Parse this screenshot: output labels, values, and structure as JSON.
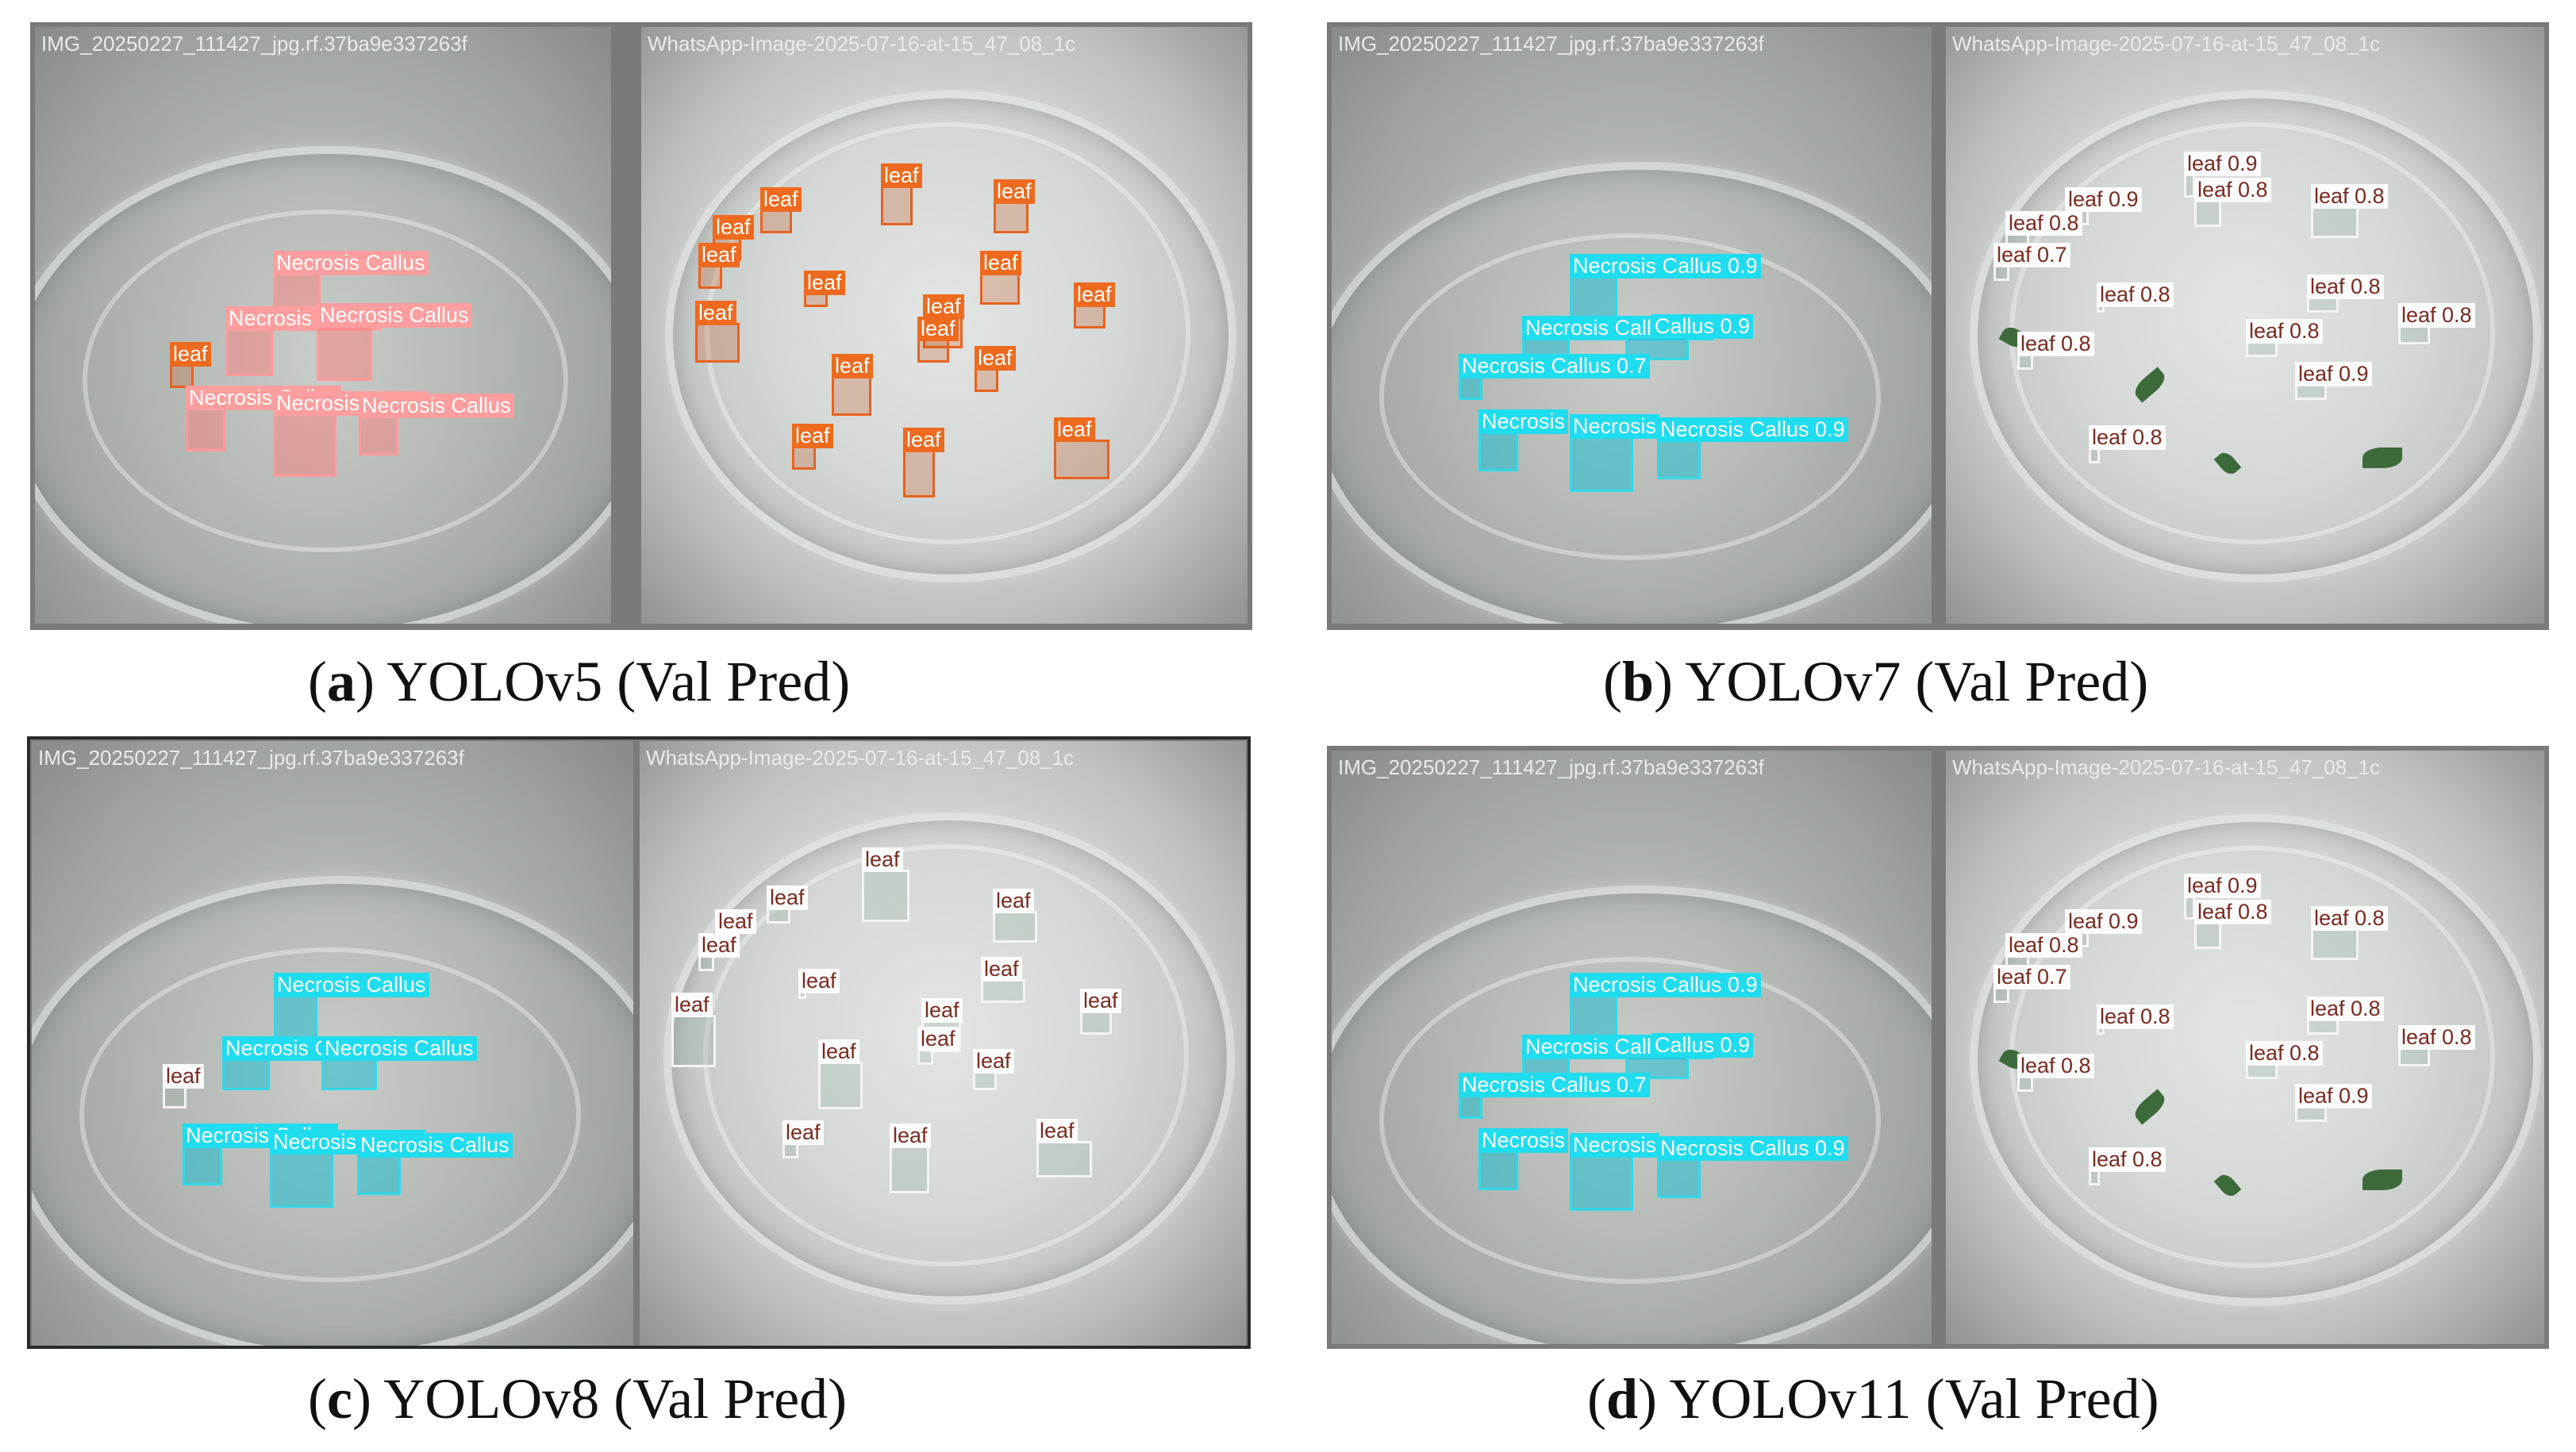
{
  "panels": [
    {
      "id": "a",
      "letter": "a",
      "title": "YOLOv5 (Val Pred)",
      "left_image_name": "IMG_20250227_111427_jpg.rf.37ba9e337263f",
      "right_image_name": "WhatsApp-Image-2025-07-16-at-15_47_08_1c",
      "callus_label": "Necrosis Callus",
      "leaf_label": "leaf"
    },
    {
      "id": "b",
      "letter": "b",
      "title": "YOLOv7 (Val Pred)",
      "left_image_name": "IMG_20250227_111427_jpg.rf.37ba9e337263f",
      "right_image_name": "WhatsApp-Image-2025-07-16-at-15_47_08_1c",
      "callus_labels": [
        "Necrosis Callus 0.9",
        "Necrosis Callus 0.9",
        "Callus 0.9",
        "Necrosis Callus 0.7",
        "Necrosis",
        "Necrosis",
        "Necrosis Callus 0.9"
      ],
      "leaf_labels": [
        "leaf 0.9",
        "leaf 0.9",
        "leaf 0.8",
        "leaf 0.8",
        "leaf 0.8",
        "leaf 0.7",
        "leaf 0.8",
        "leaf 0.8",
        "leaf 0.8",
        "leaf 0.8",
        "leaf 0.8",
        "leaf 0.9",
        "leaf 0.8"
      ]
    },
    {
      "id": "c",
      "letter": "c",
      "title": "YOLOv8 (Val Pred)",
      "left_image_name": "IMG_20250227_111427_jpg.rf.37ba9e337263f",
      "right_image_name": "WhatsApp-Image-2025-07-16-at-15_47_08_1c",
      "callus_label": "Necrosis Callus",
      "leaf_label": "leaf"
    },
    {
      "id": "d",
      "letter": "d",
      "title": "YOLOv11 (Val Pred)",
      "left_image_name": "IMG_20250227_111427_jpg.rf.37ba9e337263f",
      "right_image_name": "WhatsApp-Image-2025-07-16-at-15_47_08_1c",
      "callus_labels": [
        "Necrosis Callus 0.9",
        "Necrosis Callus 0.9",
        "Callus 0.9",
        "Necrosis Callus 0.7",
        "Necrosis",
        "Necrosis",
        "Necrosis Callus 0.9"
      ],
      "leaf_labels": [
        "leaf 0.9",
        "leaf 0.9",
        "leaf 0.8",
        "leaf 0.8",
        "leaf 0.8",
        "leaf 0.7",
        "leaf 0.8",
        "leaf 0.8",
        "leaf 0.8",
        "leaf 0.8",
        "leaf 0.8",
        "leaf 0.9",
        "leaf 0.8"
      ]
    }
  ],
  "colors": {
    "v5_callus": "#ff9e9e",
    "v5_leaf": "#ee6a1e",
    "cyan_callus": "#1fdcef",
    "white_leaf": "#fbfbfb",
    "leaf_text_dark": "#7a2b20"
  }
}
